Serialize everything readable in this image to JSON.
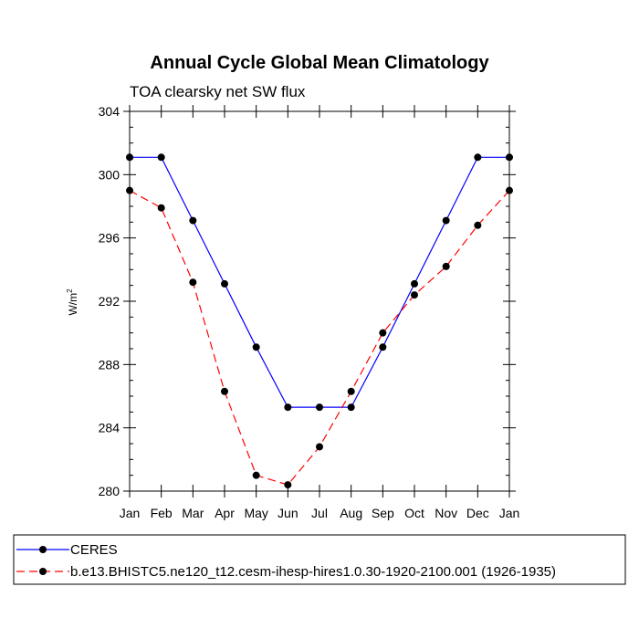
{
  "chart_data": {
    "type": "line",
    "title": "Annual Cycle Global Mean Climatology",
    "subtitle": "TOA clearsky net SW flux",
    "ylabel": "W/m",
    "ylabel_superscript": "2",
    "xlabel": "",
    "categories": [
      "Jan",
      "Feb",
      "Mar",
      "Apr",
      "May",
      "Jun",
      "Jul",
      "Aug",
      "Sep",
      "Oct",
      "Nov",
      "Dec",
      "Jan"
    ],
    "ylim": [
      280,
      304
    ],
    "yticks": [
      280,
      284,
      288,
      292,
      296,
      300,
      304
    ],
    "yminor_step": 1,
    "grid": false,
    "legend_position": "bottom",
    "series": [
      {
        "name": "CERES",
        "color": "#0000ff",
        "dash": "solid",
        "marker": "circle",
        "values": [
          301.1,
          301.1,
          297.1,
          293.1,
          289.1,
          285.3,
          285.3,
          285.3,
          289.1,
          293.1,
          297.1,
          301.1,
          301.1
        ]
      },
      {
        "name": "b.e13.BHISTC5.ne120_t12.cesm-ihesp-hires1.0.30-1920-2100.001 (1926-1935)",
        "color": "#ff0000",
        "dash": "dashed",
        "marker": "circle",
        "values": [
          299.0,
          297.9,
          293.2,
          286.3,
          281.0,
          280.4,
          282.8,
          286.3,
          290.0,
          292.4,
          294.2,
          296.8,
          299.0
        ]
      }
    ]
  }
}
